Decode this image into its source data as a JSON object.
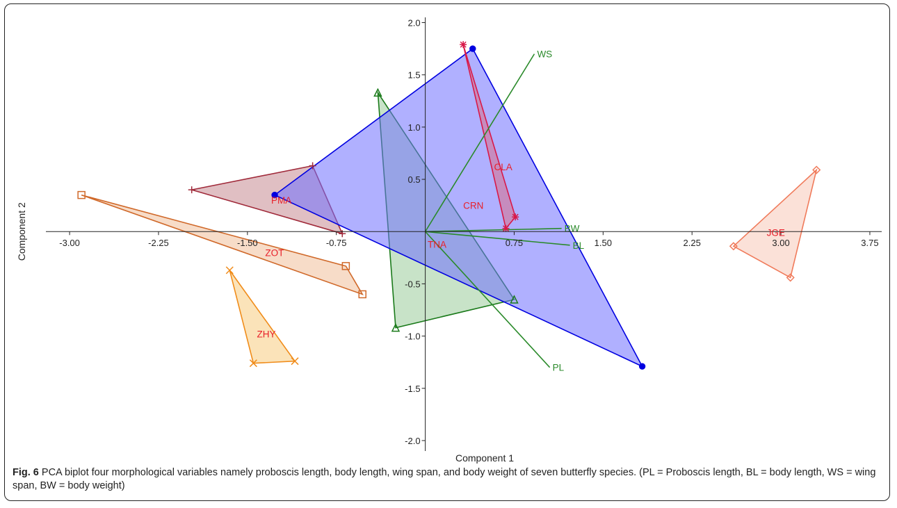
{
  "figure": {
    "caption_label": "Fig. 6",
    "caption_text": " PCA biplot four morphological variables namely proboscis length, body length, wing span, and body weight of seven butterfly species. (PL = Proboscis length, BL = body length, WS = wing span, BW = body weight)"
  },
  "chart_data": {
    "type": "scatter",
    "xlabel": "Component 1",
    "ylabel": "Component 2",
    "xlim": [
      -3.2,
      3.85
    ],
    "ylim": [
      -2.1,
      2.05
    ],
    "x_ticks": [
      -3.0,
      -2.25,
      -1.5,
      -0.75,
      0.75,
      1.5,
      2.25,
      3.0,
      3.75
    ],
    "x_tick_labels": [
      "-3.00",
      "-2.25",
      "-1.50",
      "-0.75",
      "0.75",
      "1.50",
      "2.25",
      "3.00",
      "3.75"
    ],
    "y_ticks": [
      2.0,
      1.5,
      1.0,
      0.5,
      -0.5,
      -1.0,
      -1.5,
      -2.0
    ],
    "y_tick_labels": [
      "2.0",
      "1.5",
      "1.0",
      "0.5",
      "-0.5",
      "-1.0",
      "-1.5",
      "-2.0"
    ],
    "grid": false,
    "groups": [
      {
        "name": "ZOT",
        "color": "#d0692a",
        "fill": "#f0c09a",
        "marker": "square",
        "points": [
          [
            -2.9,
            0.35
          ],
          [
            -0.67,
            -0.33
          ],
          [
            -0.53,
            -0.6
          ]
        ],
        "label_at": [
          -1.35,
          -0.2
        ]
      },
      {
        "name": "ZHY",
        "color": "#f08c1a",
        "fill": "#f8cc80",
        "marker": "x",
        "points": [
          [
            -1.65,
            -0.37
          ],
          [
            -1.45,
            -1.26
          ],
          [
            -1.1,
            -1.24
          ]
        ],
        "label_at": [
          -1.42,
          -0.98
        ]
      },
      {
        "name": "PMA",
        "color": "#a02a3a",
        "fill": "#c68a92",
        "marker": "plus",
        "points": [
          [
            -1.97,
            0.4
          ],
          [
            -0.95,
            0.63
          ],
          [
            -0.7,
            -0.02
          ]
        ],
        "label_at": [
          -1.3,
          0.3
        ]
      },
      {
        "name": "TNA",
        "color": "#1a7a1a",
        "fill": "#9acc9a",
        "marker": "triangle",
        "points": [
          [
            -0.4,
            1.33
          ],
          [
            -0.25,
            -0.92
          ],
          [
            0.75,
            -0.65
          ]
        ],
        "label_at": [
          0.02,
          -0.12
        ]
      },
      {
        "name": "CRN",
        "color": "#0000e0",
        "fill": "#7070ff",
        "marker": "circle",
        "points": [
          [
            -1.27,
            0.35
          ],
          [
            0.4,
            1.75
          ],
          [
            1.83,
            -1.29
          ]
        ],
        "label_at": [
          0.32,
          0.25
        ]
      },
      {
        "name": "CLA",
        "color": "#d81848",
        "fill": "#d87088",
        "marker": "star",
        "points": [
          [
            0.32,
            1.79
          ],
          [
            0.68,
            0.03
          ],
          [
            0.76,
            0.14
          ]
        ],
        "label_at": [
          0.58,
          0.62
        ]
      },
      {
        "name": "JGE",
        "color": "#f07a5a",
        "fill": "#f8c8b8",
        "marker": "diamond",
        "points": [
          [
            2.6,
            -0.14
          ],
          [
            3.08,
            -0.44
          ],
          [
            3.3,
            0.59
          ]
        ],
        "label_at": [
          2.88,
          -0.01
        ]
      }
    ],
    "loadings": [
      {
        "name": "WS",
        "x": 0.92,
        "y": 1.7
      },
      {
        "name": "BW",
        "x": 1.15,
        "y": 0.03
      },
      {
        "name": "BL",
        "x": 1.22,
        "y": -0.13
      },
      {
        "name": "PL",
        "x": 1.05,
        "y": -1.3
      }
    ],
    "loading_color": "#2a8a2a"
  }
}
